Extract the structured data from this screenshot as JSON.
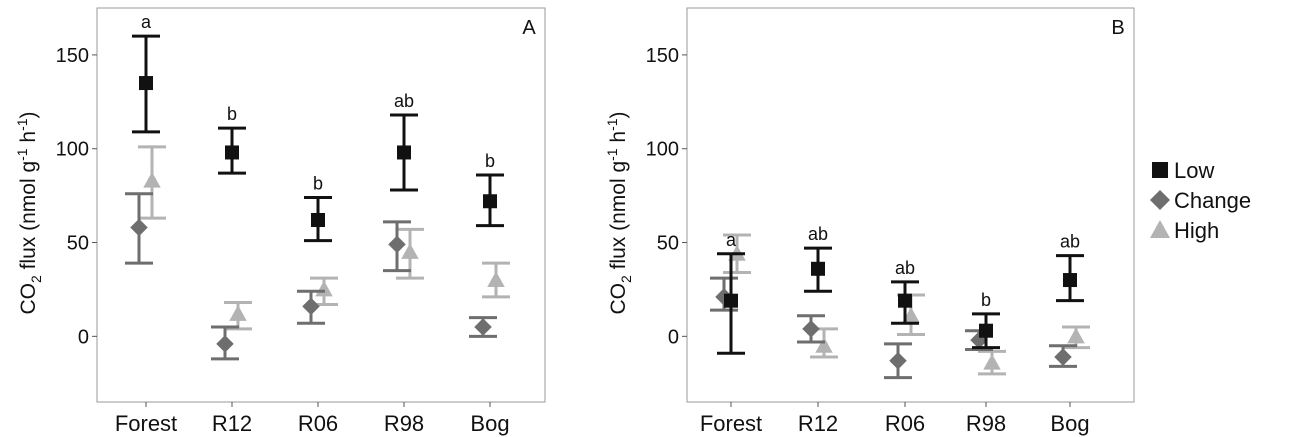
{
  "figure": {
    "legend": {
      "placement": "right",
      "entries": [
        {
          "name": "Low",
          "color": "#111111",
          "marker": "square-icon"
        },
        {
          "name": "Change",
          "color": "#6e6e6e",
          "marker": "diamond-icon"
        },
        {
          "name": "High",
          "color": "#b3b3b3",
          "marker": "triangle-icon"
        }
      ]
    }
  },
  "chart_data": [
    {
      "type": "scatter",
      "panel_label": "A",
      "ylabel": "CO2 flux (nmol g-1 h-1)",
      "categories": [
        "Forest",
        "R12",
        "R06",
        "R98",
        "Bog"
      ],
      "ylim": [
        -35,
        175
      ],
      "yticks": [
        0,
        50,
        100,
        150
      ],
      "grid": false,
      "series": [
        {
          "name": "Low",
          "values": [
            135,
            98,
            62,
            98,
            72
          ],
          "err_low": [
            109,
            87,
            51,
            78,
            59
          ],
          "err_high": [
            160,
            111,
            74,
            118,
            86
          ]
        },
        {
          "name": "Change",
          "values": [
            58,
            -4,
            16,
            49,
            5
          ],
          "err_low": [
            39,
            -12,
            7,
            35,
            0
          ],
          "err_high": [
            76,
            5,
            24,
            61,
            10
          ]
        },
        {
          "name": "High",
          "values": [
            83,
            12,
            25,
            45,
            30
          ],
          "err_low": [
            63,
            4,
            17,
            31,
            21
          ],
          "err_high": [
            101,
            18,
            31,
            57,
            39
          ]
        }
      ],
      "annotations": [
        "a",
        "b",
        "b",
        "ab",
        "b"
      ]
    },
    {
      "type": "scatter",
      "panel_label": "B",
      "ylabel": "CO2 flux (nmol g-1 h-1)",
      "categories": [
        "Forest",
        "R12",
        "R06",
        "R98",
        "Bog"
      ],
      "ylim": [
        -35,
        175
      ],
      "yticks": [
        0,
        50,
        100,
        150
      ],
      "grid": false,
      "series": [
        {
          "name": "Low",
          "values": [
            19,
            36,
            19,
            3,
            30
          ],
          "err_low": [
            -9,
            24,
            7,
            -6,
            19
          ],
          "err_high": [
            44,
            47,
            29,
            12,
            43
          ]
        },
        {
          "name": "Change",
          "values": [
            21,
            4,
            -13,
            -2,
            -11
          ],
          "err_low": [
            14,
            -3,
            -22,
            -7,
            -16
          ],
          "err_high": [
            31,
            11,
            -4,
            3,
            -5
          ]
        },
        {
          "name": "High",
          "values": [
            44,
            -5,
            11,
            -14,
            0
          ],
          "err_low": [
            34,
            -11,
            1,
            -20,
            -6
          ],
          "err_high": [
            54,
            4,
            22,
            -8,
            5
          ]
        }
      ],
      "annotations": [
        "a",
        "ab",
        "ab",
        "b",
        "ab"
      ]
    }
  ]
}
